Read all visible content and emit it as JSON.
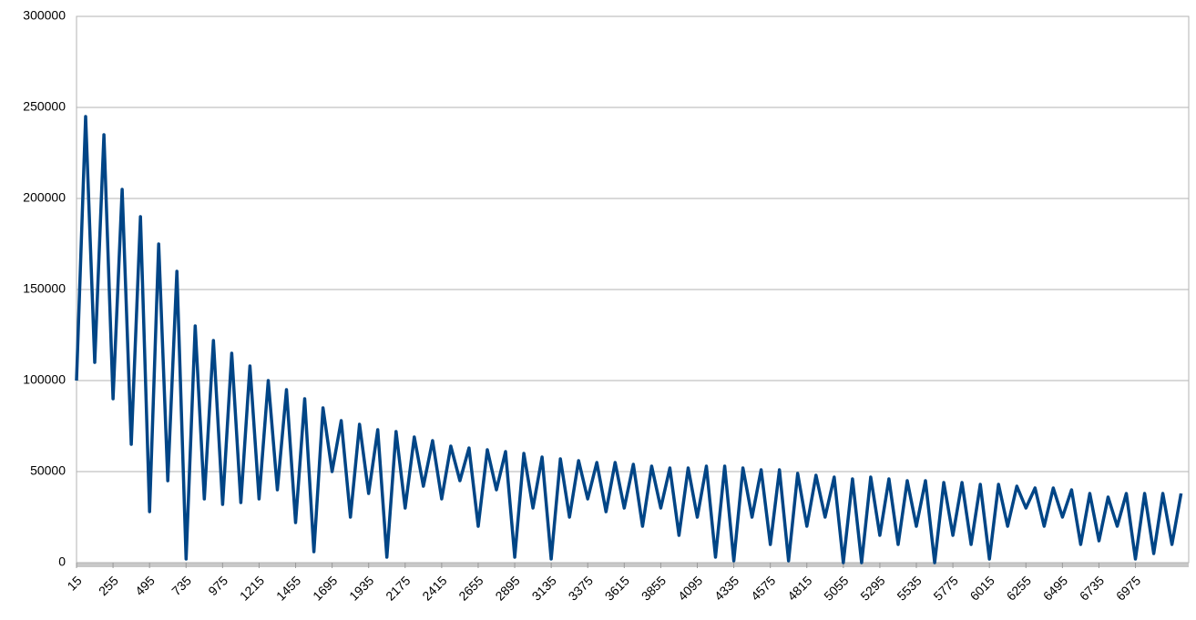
{
  "chart_data": {
    "type": "line",
    "color": "#004586",
    "grid": true,
    "ylim": [
      0,
      300000
    ],
    "yticks": [
      0,
      50000,
      100000,
      150000,
      200000,
      250000,
      300000
    ],
    "xlim": [
      15,
      7325
    ],
    "xticks": [
      15,
      255,
      495,
      735,
      975,
      1215,
      1455,
      1695,
      1935,
      2175,
      2415,
      2655,
      2895,
      3135,
      3375,
      3615,
      3855,
      4095,
      4335,
      4575,
      4815,
      5055,
      5295,
      5535,
      5775,
      6015,
      6255,
      6495,
      6735,
      6975
    ],
    "x": [
      15,
      75,
      135,
      195,
      255,
      315,
      375,
      435,
      495,
      555,
      615,
      675,
      735,
      795,
      855,
      915,
      975,
      1035,
      1095,
      1155,
      1215,
      1275,
      1335,
      1395,
      1455,
      1515,
      1575,
      1635,
      1695,
      1755,
      1815,
      1875,
      1935,
      1995,
      2055,
      2115,
      2175,
      2235,
      2295,
      2355,
      2415,
      2475,
      2535,
      2595,
      2655,
      2715,
      2775,
      2835,
      2895,
      2955,
      3015,
      3075,
      3135,
      3195,
      3255,
      3315,
      3375,
      3435,
      3495,
      3555,
      3615,
      3675,
      3735,
      3795,
      3855,
      3915,
      3975,
      4035,
      4095,
      4155,
      4215,
      4275,
      4335,
      4395,
      4455,
      4515,
      4575,
      4635,
      4695,
      4755,
      4815,
      4875,
      4935,
      4995,
      5055,
      5115,
      5175,
      5235,
      5295,
      5355,
      5415,
      5475,
      5535,
      5595,
      5655,
      5715,
      5775,
      5835,
      5895,
      5955,
      6015,
      6075,
      6135,
      6195,
      6255,
      6315,
      6375,
      6435,
      6495,
      6555,
      6615,
      6675,
      6735,
      6795,
      6855,
      6915,
      6975,
      7035,
      7095,
      7155,
      7215,
      7275
    ],
    "values": [
      100000,
      245000,
      110000,
      235000,
      90000,
      205000,
      65000,
      190000,
      28000,
      175000,
      45000,
      160000,
      2000,
      130000,
      35000,
      122000,
      32000,
      115000,
      33000,
      108000,
      35000,
      100000,
      40000,
      95000,
      22000,
      90000,
      6000,
      85000,
      50000,
      78000,
      25000,
      76000,
      38000,
      73000,
      3000,
      72000,
      30000,
      69000,
      42000,
      67000,
      35000,
      64000,
      45000,
      63000,
      20000,
      62000,
      40000,
      61000,
      3000,
      60000,
      30000,
      58000,
      2000,
      57000,
      25000,
      56000,
      35000,
      55000,
      28000,
      55000,
      30000,
      54000,
      20000,
      53000,
      30000,
      52000,
      15000,
      52000,
      25000,
      53000,
      3000,
      53000,
      1000,
      52000,
      25000,
      51000,
      10000,
      51000,
      1000,
      49000,
      20000,
      48000,
      25000,
      47000,
      0,
      46000,
      0,
      47000,
      15000,
      46000,
      10000,
      45000,
      20000,
      45000,
      0,
      44000,
      15000,
      44000,
      10000,
      43000,
      2000,
      43000,
      20000,
      42000,
      30000,
      41000,
      20000,
      41000,
      25000,
      40000,
      10000,
      38000,
      12000,
      36000,
      20000,
      38000,
      2000,
      38000,
      5000,
      38000,
      10000,
      38000
    ]
  }
}
